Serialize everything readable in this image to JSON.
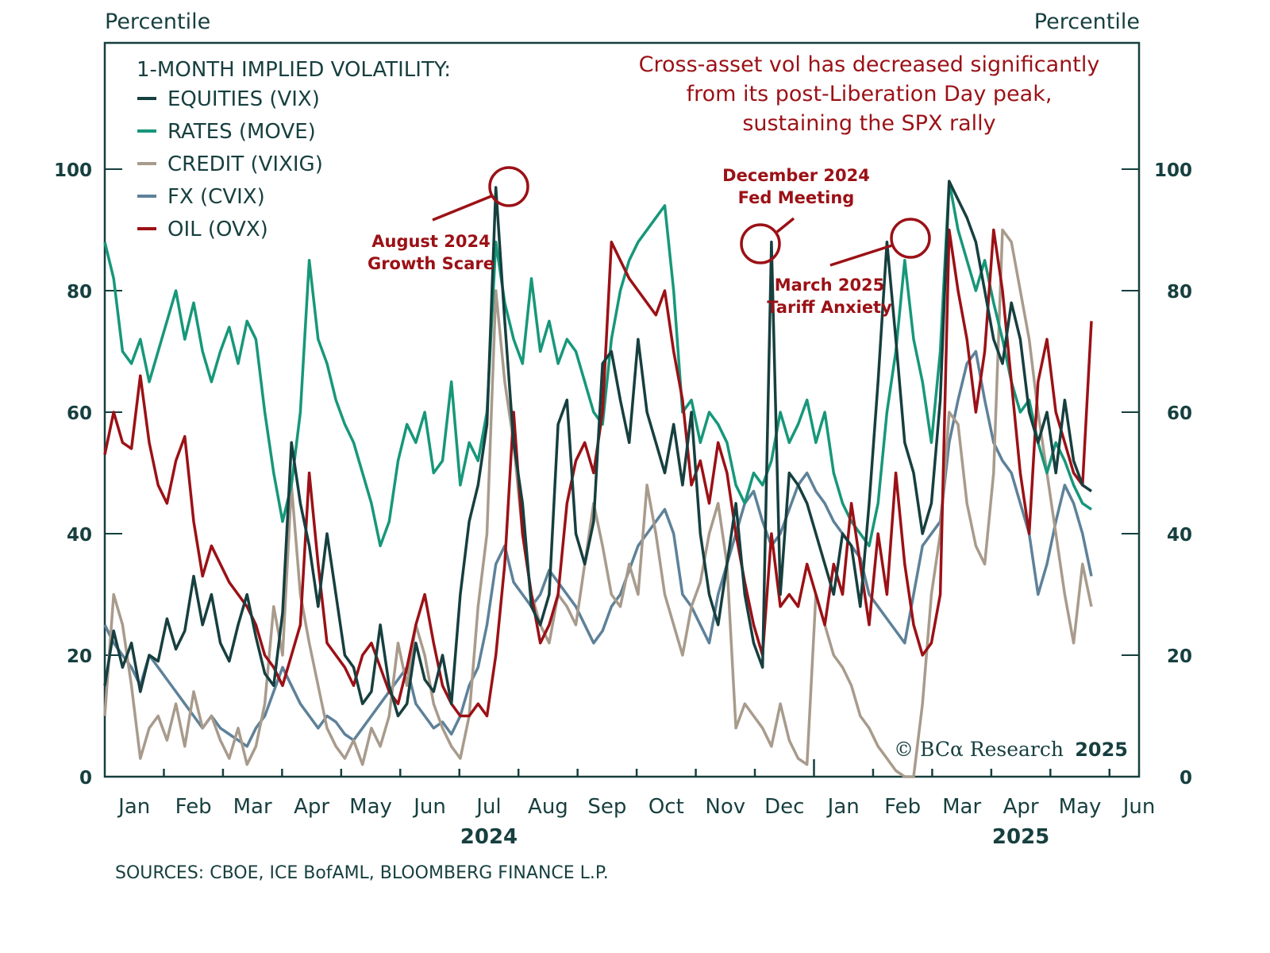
{
  "chart_data": {
    "type": "line",
    "title": "1-MONTH IMPLIED VOLATILITY:",
    "headline": [
      "Cross-asset vol has decreased significantly",
      "from its post-Liberation Day peak,",
      "sustaining the SPX rally"
    ],
    "ylabel_left": "Percentile",
    "ylabel_right": "Percentile",
    "ylim": [
      0,
      100
    ],
    "yticks": [
      0,
      20,
      40,
      60,
      80,
      100
    ],
    "grid": false,
    "legend_position": "top-left",
    "x_start": "2024-01-01",
    "x_end": "2025-06-15",
    "months": [
      "Jan",
      "Feb",
      "Mar",
      "Apr",
      "May",
      "Jun",
      "Jul",
      "Aug",
      "Sep",
      "Oct",
      "Nov",
      "Dec",
      "Jan",
      "Feb",
      "Mar",
      "Apr",
      "May",
      "Jun"
    ],
    "years": [
      {
        "label": "2024",
        "month_index": 6
      },
      {
        "label": "2025",
        "month_index": 15
      }
    ],
    "series": [
      {
        "name": "EQUITIES (VIX)",
        "color": "#173f3f",
        "values": [
          15,
          24,
          18,
          22,
          14,
          20,
          19,
          26,
          21,
          24,
          33,
          25,
          30,
          22,
          19,
          25,
          30,
          23,
          17,
          15,
          27,
          55,
          45,
          38,
          28,
          40,
          30,
          20,
          18,
          12,
          14,
          25,
          15,
          10,
          12,
          22,
          16,
          14,
          20,
          12,
          30,
          42,
          48,
          58,
          97,
          75,
          55,
          45,
          28,
          25,
          30,
          58,
          62,
          40,
          35,
          42,
          68,
          70,
          62,
          55,
          72,
          60,
          55,
          50,
          58,
          48,
          60,
          40,
          30,
          25,
          35,
          45,
          30,
          22,
          18,
          88,
          30,
          50,
          48,
          45,
          40,
          35,
          30,
          40,
          38,
          28,
          45,
          65,
          88,
          72,
          55,
          50,
          40,
          45,
          62,
          98,
          95,
          92,
          88,
          80,
          72,
          68,
          78,
          72,
          60,
          55,
          60,
          50,
          62,
          52,
          48,
          47
        ]
      },
      {
        "name": "RATES (MOVE)",
        "color": "#17977a",
        "values": [
          88,
          82,
          70,
          68,
          72,
          65,
          70,
          75,
          80,
          72,
          78,
          70,
          65,
          70,
          74,
          68,
          75,
          72,
          60,
          50,
          42,
          48,
          60,
          85,
          72,
          68,
          62,
          58,
          55,
          50,
          45,
          38,
          42,
          52,
          58,
          55,
          60,
          50,
          52,
          65,
          48,
          55,
          52,
          60,
          88,
          78,
          72,
          68,
          82,
          70,
          75,
          68,
          72,
          70,
          65,
          60,
          58,
          72,
          80,
          85,
          88,
          90,
          92,
          94,
          80,
          60,
          62,
          55,
          60,
          58,
          55,
          48,
          45,
          50,
          48,
          52,
          60,
          55,
          58,
          62,
          55,
          60,
          50,
          45,
          42,
          40,
          38,
          45,
          60,
          70,
          85,
          72,
          65,
          55,
          70,
          98,
          90,
          85,
          80,
          85,
          78,
          72,
          65,
          60,
          62,
          55,
          50,
          55,
          52,
          48,
          45,
          44
        ]
      },
      {
        "name": "CREDIT (VIXIG)",
        "color": "#a89b8c",
        "values": [
          10,
          30,
          25,
          15,
          3,
          8,
          10,
          6,
          12,
          5,
          14,
          8,
          10,
          6,
          3,
          8,
          2,
          5,
          12,
          28,
          20,
          48,
          30,
          22,
          15,
          8,
          5,
          3,
          6,
          2,
          8,
          5,
          10,
          22,
          15,
          25,
          20,
          12,
          8,
          5,
          3,
          10,
          28,
          40,
          80,
          65,
          55,
          40,
          30,
          25,
          22,
          30,
          28,
          25,
          35,
          45,
          38,
          30,
          28,
          35,
          30,
          48,
          40,
          30,
          25,
          20,
          28,
          32,
          40,
          45,
          35,
          8,
          12,
          10,
          8,
          5,
          12,
          6,
          3,
          2,
          30,
          25,
          20,
          18,
          15,
          10,
          8,
          5,
          3,
          1,
          0,
          0,
          12,
          30,
          40,
          60,
          58,
          45,
          38,
          35,
          50,
          90,
          88,
          80,
          72,
          60,
          50,
          40,
          30,
          22,
          35,
          28
        ]
      },
      {
        "name": "FX (CVIX)",
        "color": "#5e8199",
        "values": [
          25,
          22,
          20,
          18,
          15,
          20,
          18,
          16,
          14,
          12,
          10,
          8,
          10,
          8,
          7,
          6,
          5,
          8,
          10,
          14,
          18,
          15,
          12,
          10,
          8,
          10,
          9,
          7,
          6,
          8,
          10,
          12,
          14,
          16,
          18,
          12,
          10,
          8,
          9,
          7,
          10,
          15,
          18,
          25,
          35,
          38,
          32,
          30,
          28,
          30,
          34,
          32,
          30,
          28,
          25,
          22,
          24,
          28,
          30,
          34,
          38,
          40,
          42,
          44,
          40,
          30,
          28,
          25,
          22,
          30,
          35,
          40,
          45,
          47,
          42,
          38,
          40,
          44,
          48,
          50,
          47,
          45,
          42,
          40,
          38,
          36,
          30,
          28,
          26,
          24,
          22,
          30,
          38,
          40,
          42,
          55,
          62,
          68,
          70,
          62,
          55,
          52,
          50,
          45,
          40,
          30,
          35,
          42,
          48,
          45,
          40,
          33
        ]
      },
      {
        "name": "OIL (OVX)",
        "color": "#9b1116",
        "values": [
          53,
          60,
          55,
          54,
          66,
          55,
          48,
          45,
          52,
          56,
          42,
          33,
          38,
          35,
          32,
          30,
          28,
          25,
          20,
          18,
          15,
          20,
          25,
          50,
          35,
          22,
          20,
          18,
          15,
          20,
          22,
          18,
          14,
          12,
          18,
          25,
          30,
          22,
          15,
          12,
          10,
          10,
          12,
          10,
          20,
          35,
          60,
          40,
          30,
          22,
          25,
          30,
          45,
          52,
          55,
          50,
          60,
          88,
          85,
          82,
          80,
          78,
          76,
          80,
          70,
          62,
          48,
          52,
          45,
          55,
          50,
          40,
          32,
          25,
          20,
          40,
          28,
          30,
          28,
          35,
          30,
          25,
          35,
          30,
          45,
          35,
          25,
          40,
          30,
          50,
          35,
          25,
          20,
          22,
          30,
          90,
          80,
          72,
          60,
          70,
          90,
          80,
          65,
          50,
          40,
          65,
          72,
          60,
          55,
          50,
          48,
          75
        ]
      }
    ],
    "annotations": [
      {
        "label_lines": [
          "August 2024",
          "Growth Scare"
        ],
        "date": "2024-08-05",
        "value": 97
      },
      {
        "label_lines": [
          "December 2024",
          "Fed Meeting"
        ],
        "date": "2024-12-18",
        "value": 88
      },
      {
        "label_lines": [
          "March 2025",
          "Tariff Anxiety"
        ],
        "date": "2025-03-10",
        "value": 88
      }
    ],
    "sources": "SOURCES: CBOE, ICE BofAML, BLOOMBERG FINANCE L.P.",
    "copyright": "© BCα Research",
    "copyright_year": "2025"
  }
}
